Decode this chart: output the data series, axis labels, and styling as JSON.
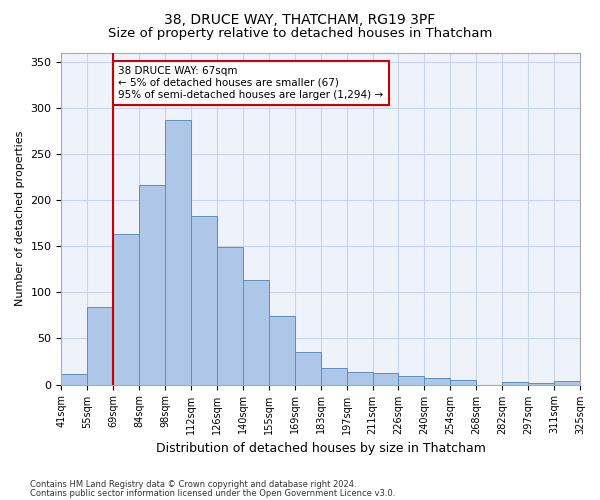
{
  "title1": "38, DRUCE WAY, THATCHAM, RG19 3PF",
  "title2": "Size of property relative to detached houses in Thatcham",
  "xlabel": "Distribution of detached houses by size in Thatcham",
  "ylabel": "Number of detached properties",
  "categories": [
    "41sqm",
    "55sqm",
    "69sqm",
    "84sqm",
    "98sqm",
    "112sqm",
    "126sqm",
    "140sqm",
    "155sqm",
    "169sqm",
    "183sqm",
    "197sqm",
    "211sqm",
    "226sqm",
    "240sqm",
    "254sqm",
    "268sqm",
    "282sqm",
    "297sqm",
    "311sqm",
    "325sqm"
  ],
  "values": [
    12,
    84,
    163,
    216,
    287,
    183,
    149,
    113,
    74,
    35,
    18,
    14,
    13,
    9,
    7,
    5,
    0,
    3,
    2,
    4
  ],
  "bar_color": "#aec6e8",
  "bar_edge_color": "#5a8fc2",
  "vline_color": "#cc0000",
  "annotation_text": "38 DRUCE WAY: 67sqm\n← 5% of detached houses are smaller (67)\n95% of semi-detached houses are larger (1,294) →",
  "annotation_box_color": "#ffffff",
  "annotation_box_edge": "#cc0000",
  "footnote1": "Contains HM Land Registry data © Crown copyright and database right 2024.",
  "footnote2": "Contains public sector information licensed under the Open Government Licence v3.0.",
  "bg_color": "#eef2fa",
  "ylim": [
    0,
    360
  ],
  "title1_fontsize": 10,
  "title2_fontsize": 9.5,
  "ylabel_fontsize": 8,
  "xlabel_fontsize": 9,
  "tick_fontsize": 7,
  "bar_width": 1.0,
  "vline_pos": 1.5
}
